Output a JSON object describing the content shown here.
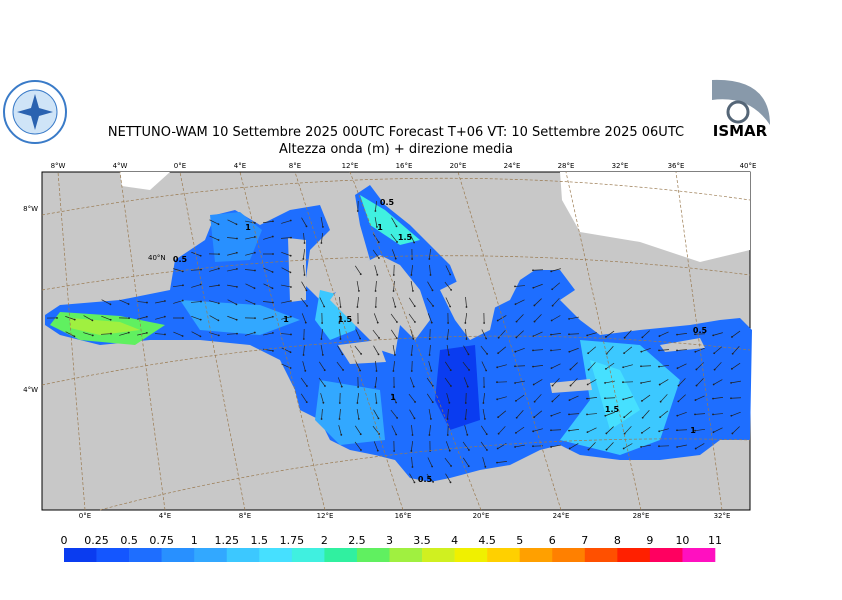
{
  "header": {
    "title": "NETTUNO-WAM  10 Settembre 2025 00UTC Forecast T+06 VT: 10 Settembre 2025 06UTC",
    "subtitle": "Altezza onda (m) + direzione media",
    "logo_right": "ISMAR"
  },
  "map": {
    "lon_top": [
      "8°W",
      "4°W",
      "0°E",
      "4°E",
      "8°E",
      "12°E",
      "16°E",
      "20°E",
      "24°E",
      "28°E",
      "32°E",
      "36°E",
      "40°E"
    ],
    "lon_bottom": [
      "0°E",
      "4°E",
      "8°E",
      "12°E",
      "16°E",
      "20°E",
      "24°E",
      "28°E",
      "32°E"
    ],
    "lat_left": [
      "8°W",
      "40°N",
      "4°W"
    ],
    "contour_labels": [
      "1",
      "0.5",
      "1",
      "1.5",
      "0.5",
      "1",
      "1.5",
      "1",
      "0.5",
      "1.5",
      "1",
      "0.5"
    ]
  },
  "colorbar": {
    "labels": [
      "0",
      "0.25",
      "0.5",
      "0.75",
      "1",
      "1.25",
      "1.5",
      "1.75",
      "2",
      "2.5",
      "3",
      "3.5",
      "4",
      "4.5",
      "5",
      "6",
      "7",
      "8",
      "9",
      "10",
      "11"
    ],
    "colors": [
      "#0a3cf0",
      "#1456ff",
      "#1e6eff",
      "#2890ff",
      "#32a8ff",
      "#3cc8ff",
      "#46e0ff",
      "#40f0e0",
      "#30f0a0",
      "#60f060",
      "#a0f040",
      "#d0f020",
      "#f0f000",
      "#ffd000",
      "#ffa000",
      "#ff8000",
      "#ff5000",
      "#ff2000",
      "#ff0060",
      "#ff10c0"
    ]
  }
}
